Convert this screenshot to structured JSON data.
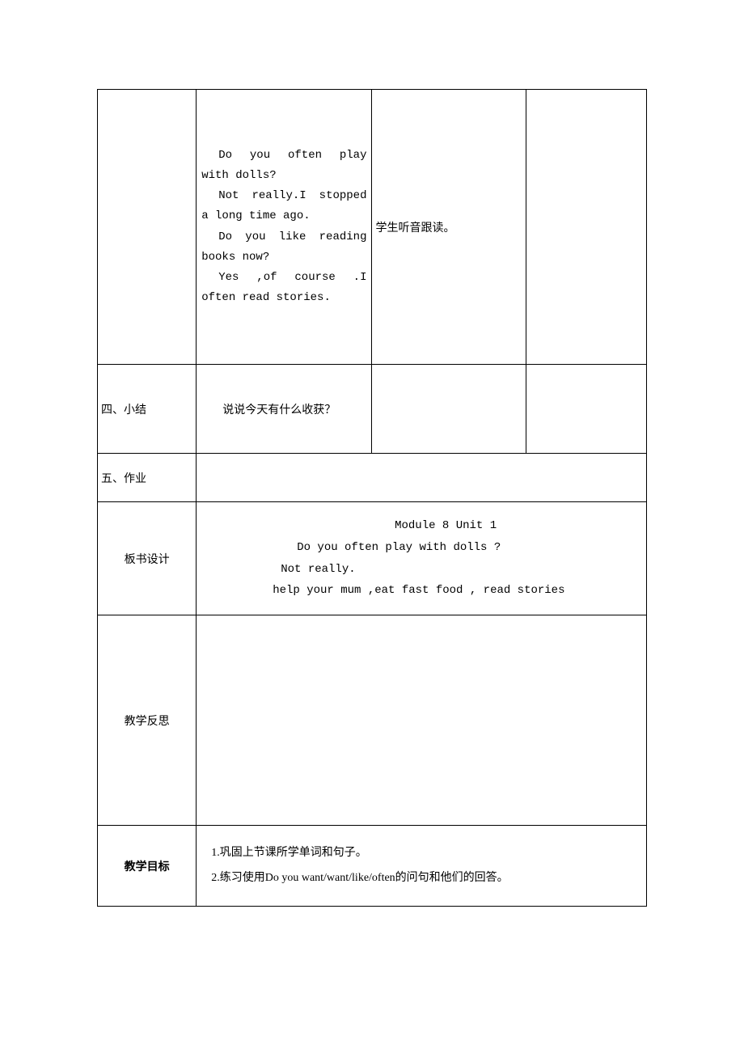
{
  "row1": {
    "dialog_line1": "Do you often play with dolls?",
    "dialog_line2": "Not really.I stopped a long time ago.",
    "dialog_line3": "Do you like reading books now?",
    "dialog_line4": "Yes ,of course .I often read stories.",
    "col3_text": "学生听音跟读。"
  },
  "row2": {
    "label": "四、小结",
    "content": "说说今天有什么收获？"
  },
  "row3": {
    "label": "五、作业"
  },
  "row4": {
    "label": "板书设计",
    "board_title": "Module 8 Unit 1",
    "board_line2": "Do you often play with dolls ?",
    "board_line3": "Not really.",
    "board_line4": "help your mum ,eat fast food , read stories"
  },
  "row5": {
    "label": "教学反思"
  },
  "row6": {
    "label": "教学目标",
    "goal1": "1.巩固上节课所学单词和句子。",
    "goal2": "2.练习使用Do you want/want/like/often的问句和他们的回答。"
  }
}
